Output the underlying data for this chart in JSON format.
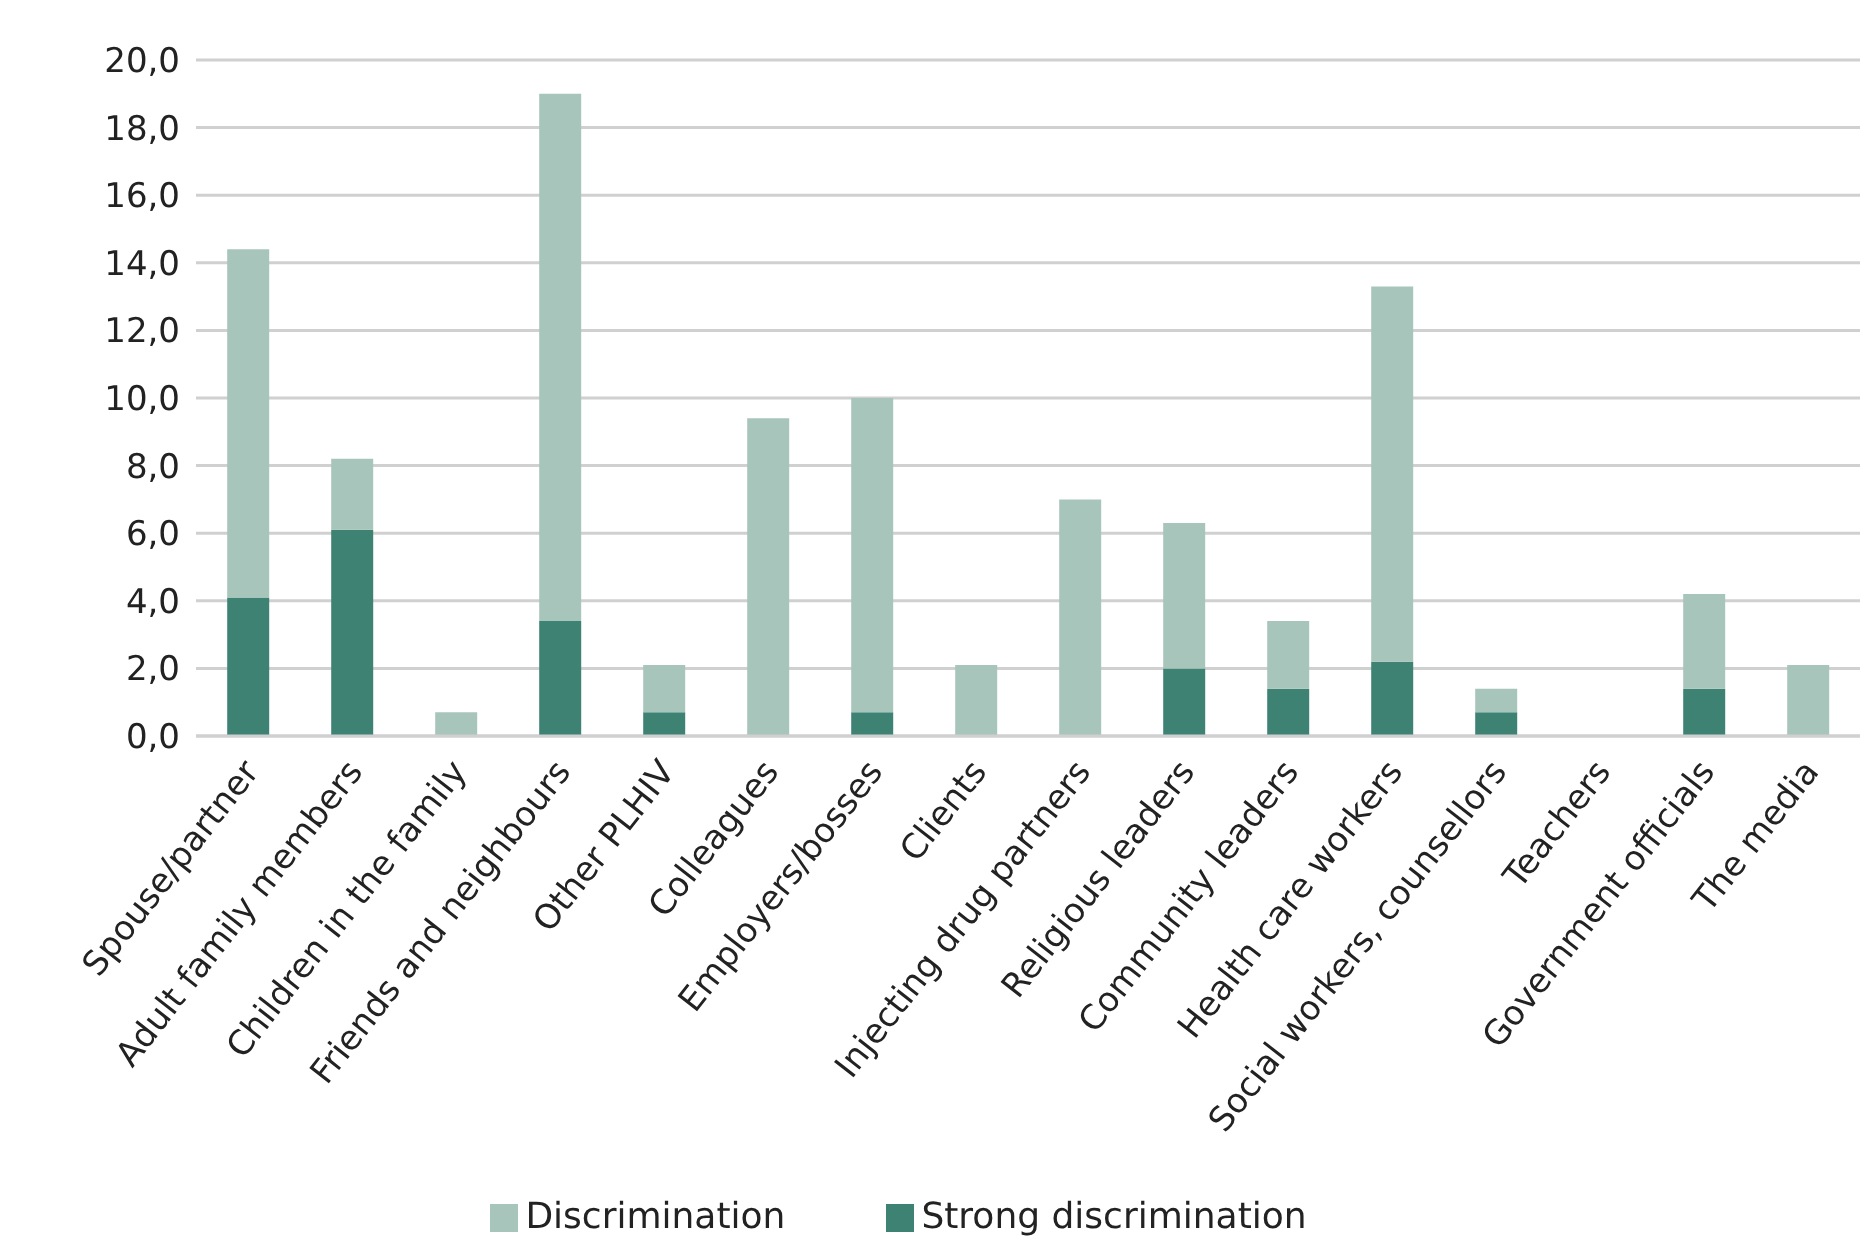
{
  "chart_data": {
    "type": "bar",
    "stacked": true,
    "categories": [
      "Spouse/partner",
      "Adult family members",
      "Children in the family",
      "Friends and neighbours",
      "Other PLHIV",
      "Colleagues",
      "Employers/bosses",
      "Clients",
      "Injecting drug partners",
      "Religious leaders",
      "Community leaders",
      "Health care workers",
      "Social workers, counsellors",
      "Teachers",
      "Government officials",
      "The media"
    ],
    "series": [
      {
        "name": "Strong discrimination",
        "color": "#3d8272",
        "values": [
          4.1,
          6.1,
          0,
          3.4,
          0.7,
          0,
          0.7,
          0,
          0,
          2.0,
          1.4,
          2.2,
          0.7,
          0,
          1.4,
          0
        ]
      },
      {
        "name": "Discrimination",
        "color": "#a7c5bb",
        "values": [
          10.3,
          2.1,
          0.7,
          15.6,
          1.4,
          9.4,
          9.3,
          2.1,
          7.0,
          4.3,
          2.0,
          11.1,
          0.7,
          0,
          2.8,
          2.1
        ]
      }
    ],
    "ylim": [
      0,
      20
    ],
    "yticks": [
      {
        "value": 0,
        "label": "0,0"
      },
      {
        "value": 2,
        "label": "2,0"
      },
      {
        "value": 4,
        "label": "4,0"
      },
      {
        "value": 6,
        "label": "6,0"
      },
      {
        "value": 8,
        "label": "8,0"
      },
      {
        "value": 10,
        "label": "10,0"
      },
      {
        "value": 12,
        "label": "12,0"
      },
      {
        "value": 14,
        "label": "14,0"
      },
      {
        "value": 16,
        "label": "16,0"
      },
      {
        "value": 18,
        "label": "18,0"
      },
      {
        "value": 20,
        "label": "20,0"
      }
    ],
    "grid": "y",
    "legend": "bottom"
  }
}
